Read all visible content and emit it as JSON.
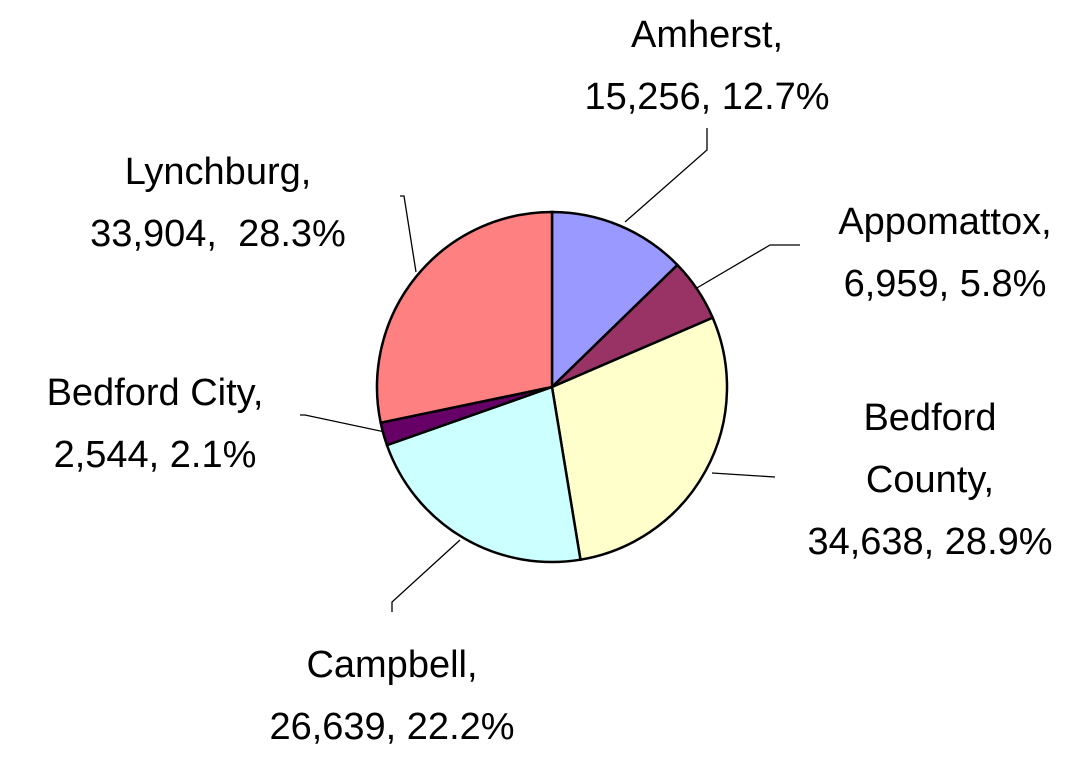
{
  "chart_data": {
    "type": "pie",
    "categories": [
      "Amherst,",
      "Appomattox,",
      "Bedford County,",
      "Campbell,",
      "Bedford City,",
      "Lynchburg,"
    ],
    "values": [
      15256,
      6959,
      34638,
      26639,
      2544,
      33904
    ],
    "value_labels": [
      "15,256, 12.7%",
      "6,959, 5.8%",
      "34,638, 28.9%",
      "26,639, 22.2%",
      "2,544, 2.1%",
      "33,904,  28.3%"
    ],
    "colors": [
      "#9999ff",
      "#993366",
      "#ffffcc",
      "#ccffff",
      "#660066",
      "#ff8080"
    ]
  }
}
